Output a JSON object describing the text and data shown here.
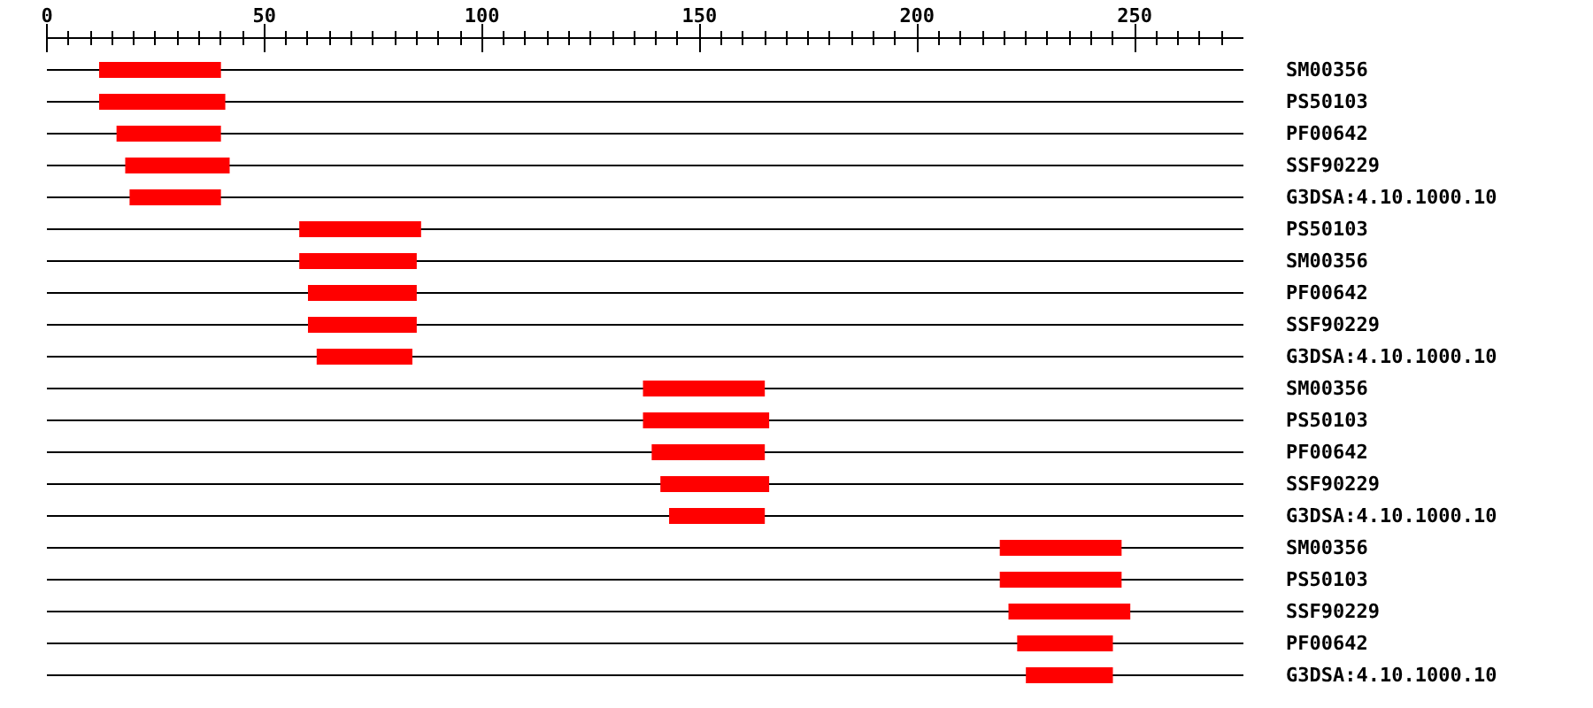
{
  "chart_data": {
    "type": "bar",
    "orientation": "horizontal",
    "categories": [
      "SM00356",
      "PS50103",
      "PF00642",
      "SSF90229",
      "G3DSA:4.10.1000.10",
      "PS50103",
      "SM00356",
      "PF00642",
      "SSF90229",
      "G3DSA:4.10.1000.10",
      "SM00356",
      "PS50103",
      "PF00642",
      "SSF90229",
      "G3DSA:4.10.1000.10",
      "SM00356",
      "PS50103",
      "SSF90229",
      "PF00642",
      "G3DSA:4.10.1000.10"
    ],
    "base": [
      12,
      12,
      16,
      18,
      19,
      58,
      58,
      60,
      60,
      62,
      137,
      137,
      139,
      141,
      143,
      219,
      219,
      221,
      223,
      225
    ],
    "values": [
      28,
      29,
      24,
      24,
      21,
      28,
      27,
      25,
      25,
      22,
      28,
      29,
      26,
      25,
      22,
      28,
      28,
      28,
      22,
      20
    ],
    "color": "#ff0000",
    "xlim": [
      0,
      275
    ],
    "xticks": [
      0,
      {
        "value": 5,
        "label": null
      },
      {
        "value": 10,
        "label": null
      },
      {
        "value": 15,
        "label": null
      },
      {
        "value": 20,
        "label": null
      },
      {
        "value": 25,
        "label": null
      },
      {
        "value": 30,
        "label": null
      },
      {
        "value": 35,
        "label": null
      },
      {
        "value": 40,
        "label": null
      },
      {
        "value": 45,
        "label": null
      },
      50,
      {
        "value": 55,
        "label": null
      },
      {
        "value": 60,
        "label": null
      },
      {
        "value": 65,
        "label": null
      },
      {
        "value": 70,
        "label": null
      },
      {
        "value": 75,
        "label": null
      },
      {
        "value": 80,
        "label": null
      },
      {
        "value": 85,
        "label": null
      },
      {
        "value": 90,
        "label": null
      },
      {
        "value": 95,
        "label": null
      },
      100,
      {
        "value": 105,
        "label": null
      },
      {
        "value": 110,
        "label": null
      },
      {
        "value": 115,
        "label": null
      },
      {
        "value": 120,
        "label": null
      },
      {
        "value": 125,
        "label": null
      },
      {
        "value": 130,
        "label": null
      },
      {
        "value": 135,
        "label": null
      },
      {
        "value": 140,
        "label": null
      },
      {
        "value": 145,
        "label": null
      },
      150,
      {
        "value": 155,
        "label": null
      },
      {
        "value": 160,
        "label": null
      },
      {
        "value": 165,
        "label": null
      },
      {
        "value": 170,
        "label": null
      },
      {
        "value": 175,
        "label": null
      },
      {
        "value": 180,
        "label": null
      },
      {
        "value": 185,
        "label": null
      },
      {
        "value": 190,
        "label": null
      },
      {
        "value": 195,
        "label": null
      },
      200,
      {
        "value": 205,
        "label": null
      },
      {
        "value": 210,
        "label": null
      },
      {
        "value": 215,
        "label": null
      },
      {
        "value": 220,
        "label": null
      },
      {
        "value": 225,
        "label": null
      },
      {
        "value": 230,
        "label": null
      },
      {
        "value": 235,
        "label": null
      },
      {
        "value": 240,
        "label": null
      },
      {
        "value": 245,
        "label": null
      },
      250,
      {
        "value": 255,
        "label": null
      },
      {
        "value": 260,
        "label": null
      },
      {
        "value": 265,
        "label": null
      },
      {
        "value": 270,
        "label": null
      }
    ],
    "grid": "y"
  }
}
